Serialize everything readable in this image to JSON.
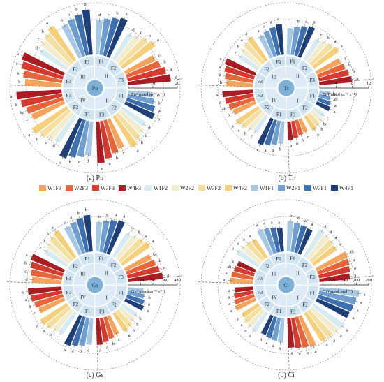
{
  "legend": [
    {
      "label": "W1F3",
      "color": "#f6a45c"
    },
    {
      "label": "W2F3",
      "color": "#e8643a"
    },
    {
      "label": "W3F3",
      "color": "#d63a2e"
    },
    {
      "label": "W4F3",
      "color": "#a71d22"
    },
    {
      "label": "W1F2",
      "color": "#d6ebf2"
    },
    {
      "label": "W2F2",
      "color": "#f3edcf"
    },
    {
      "label": "W3F2",
      "color": "#f5dfa0"
    },
    {
      "label": "W4F2",
      "color": "#f6cf7a"
    },
    {
      "label": "W1F1",
      "color": "#a6c8e4"
    },
    {
      "label": "W2F1",
      "color": "#6f9fd0"
    },
    {
      "label": "W3F1",
      "color": "#3e6fae"
    },
    {
      "label": "W4F1",
      "color": "#1f3f78"
    }
  ],
  "rings": {
    "periods": [
      "I",
      "II",
      "III",
      "IV"
    ],
    "fert": [
      "F1",
      "F2",
      "F3"
    ]
  },
  "chart_data": [
    {
      "type": "bar",
      "caption": "(a) Pn",
      "center": "Pn",
      "axis_label": "Pn/(μmol m⁻² s⁻¹)",
      "ticks": [
        "0",
        "10",
        "20"
      ],
      "ylim": [
        0,
        20
      ],
      "categories": [
        "I-F1",
        "I-F2",
        "I-F3",
        "IV-F1",
        "IV-F2",
        "IV-F3",
        "III-F3",
        "III-F2",
        "III-F1",
        "II-F1",
        "II-F2",
        "II-F3"
      ],
      "series": [
        {
          "name": "W1",
          "values": [
            10.0,
            11.5,
            13.0,
            14.0,
            13.0,
            14.5,
            15.0,
            13.0,
            15.0,
            14.0,
            12.5,
            13.5
          ]
        },
        {
          "name": "W2",
          "values": [
            11.0,
            12.5,
            14.0,
            15.0,
            14.0,
            15.5,
            16.0,
            14.5,
            16.0,
            15.0,
            13.5,
            14.5
          ]
        },
        {
          "name": "W3",
          "values": [
            12.0,
            13.5,
            15.5,
            16.0,
            15.5,
            17.0,
            17.5,
            15.5,
            17.0,
            16.0,
            15.0,
            16.0
          ]
        },
        {
          "name": "W4",
          "values": [
            13.0,
            15.0,
            17.0,
            17.5,
            17.0,
            18.5,
            18.5,
            17.0,
            18.5,
            17.0,
            16.5,
            17.5
          ]
        }
      ],
      "sig": [
        [
          "c",
          "b",
          "a",
          "b"
        ],
        [
          "d",
          "c",
          "b",
          "a"
        ],
        [
          "c",
          "b",
          "a",
          "a"
        ],
        [
          "d",
          "c",
          "b",
          "a"
        ],
        [
          "d",
          "c",
          "b",
          "a"
        ],
        [
          "c",
          "bc",
          "b",
          "a"
        ],
        [
          "b",
          "a",
          "a",
          "a"
        ],
        [
          "d",
          "c",
          "b",
          "a"
        ],
        [
          "a",
          "a",
          "b",
          "b"
        ],
        [
          "d",
          "c",
          "b",
          "a"
        ],
        [
          "d",
          "c",
          "b",
          "a"
        ],
        [
          "c",
          "b",
          "a",
          "d"
        ]
      ]
    },
    {
      "type": "bar",
      "caption": "(b) Tr",
      "center": "Tr",
      "axis_label": "Tr/(mmol m⁻² s⁻¹)",
      "ticks": [
        "0",
        "4",
        "8",
        "12"
      ],
      "ylim": [
        0,
        12
      ],
      "categories": [
        "I-F1",
        "I-F2",
        "I-F3",
        "IV-F1",
        "IV-F2",
        "IV-F3",
        "III-F3",
        "III-F2",
        "III-F1",
        "II-F1",
        "II-F2",
        "II-F3"
      ],
      "series": [
        {
          "name": "W1",
          "values": [
            2.5,
            3.0,
            3.5,
            5.5,
            5.0,
            6.0,
            6.5,
            5.5,
            6.0,
            6.5,
            6.0,
            6.5
          ]
        },
        {
          "name": "W2",
          "values": [
            2.8,
            3.4,
            3.8,
            6.0,
            5.5,
            6.5,
            7.0,
            6.0,
            6.5,
            7.0,
            6.5,
            7.0
          ]
        },
        {
          "name": "W3",
          "values": [
            3.2,
            3.8,
            4.2,
            6.5,
            6.0,
            7.0,
            7.5,
            6.5,
            7.0,
            7.5,
            7.0,
            7.5
          ]
        },
        {
          "name": "W4",
          "values": [
            3.6,
            4.2,
            4.6,
            7.0,
            6.5,
            7.5,
            8.0,
            7.0,
            7.5,
            8.0,
            7.5,
            8.0
          ]
        }
      ],
      "sig": [
        [
          "bc",
          "ab",
          "a",
          "a"
        ],
        [
          "c",
          "bc",
          "b",
          "a"
        ],
        [
          "c",
          "b",
          "a",
          "a"
        ],
        [
          "b",
          "b",
          "a",
          "a"
        ],
        [
          "c",
          "b",
          "a",
          "a"
        ],
        [
          "b",
          "ab",
          "a",
          "a"
        ],
        [
          "b",
          "a",
          "a",
          "a"
        ],
        [
          "c",
          "b",
          "a",
          "a"
        ],
        [
          "a",
          "a",
          "a",
          "a"
        ],
        [
          "c",
          "b",
          "a",
          "a"
        ],
        [
          "c",
          "b",
          "a",
          "a"
        ],
        [
          "b",
          "b",
          "a",
          "a"
        ]
      ]
    },
    {
      "type": "bar",
      "caption": "(c) Gs",
      "center": "Gs",
      "axis_label": "Gs/(μmol m⁻² s⁻¹)",
      "ticks": [
        "120",
        "240",
        "360",
        "480"
      ],
      "ylim": [
        0,
        480
      ],
      "categories": [
        "I-F1",
        "I-F2",
        "I-F3",
        "IV-F1",
        "IV-F2",
        "IV-F3",
        "III-F3",
        "III-F2",
        "III-F1",
        "II-F1",
        "II-F2",
        "II-F3"
      ],
      "series": [
        {
          "name": "W1",
          "values": [
            150,
            170,
            200,
            260,
            250,
            270,
            290,
            260,
            300,
            290,
            270,
            280
          ]
        },
        {
          "name": "W2",
          "values": [
            165,
            185,
            220,
            280,
            270,
            290,
            310,
            280,
            320,
            310,
            290,
            300
          ]
        },
        {
          "name": "W3",
          "values": [
            180,
            200,
            240,
            300,
            290,
            310,
            330,
            300,
            340,
            330,
            310,
            320
          ]
        },
        {
          "name": "W4",
          "values": [
            195,
            215,
            260,
            320,
            310,
            330,
            350,
            320,
            360,
            350,
            330,
            340
          ]
        }
      ],
      "sig": [
        [
          "c",
          "b",
          "a",
          "a"
        ],
        [
          "b",
          "b",
          "a",
          "a"
        ],
        [
          "c",
          "b",
          "a",
          "a"
        ],
        [
          "c",
          "b",
          "a",
          "a"
        ],
        [
          "c",
          "b",
          "a",
          "a"
        ],
        [
          "c",
          "b",
          "a",
          "a"
        ],
        [
          "d",
          "c",
          "b",
          "a"
        ],
        [
          "c",
          "b",
          "a",
          "a"
        ],
        [
          "a",
          "a",
          "b",
          "b"
        ],
        [
          "c",
          "b",
          "a",
          "a"
        ],
        [
          "c",
          "b",
          "a",
          "a"
        ],
        [
          "bc",
          "b",
          "a",
          "a"
        ]
      ]
    },
    {
      "type": "bar",
      "caption": "(d) Ci",
      "center": "Ci",
      "axis_label": "Ci/(μmol mol⁻¹)",
      "ticks": [
        "220",
        "240",
        "260",
        "280"
      ],
      "ylim": [
        200,
        280
      ],
      "categories": [
        "I-F1",
        "I-F2",
        "I-F3",
        "IV-F1",
        "IV-F2",
        "IV-F3",
        "III-F3",
        "III-F2",
        "III-F1",
        "II-F1",
        "II-F2",
        "II-F3"
      ],
      "series": [
        {
          "name": "W1",
          "values": [
            265,
            260,
            255,
            240,
            238,
            236,
            238,
            242,
            245,
            250,
            252,
            256
          ]
        },
        {
          "name": "W2",
          "values": [
            262,
            258,
            252,
            238,
            236,
            234,
            236,
            240,
            243,
            248,
            250,
            254
          ]
        },
        {
          "name": "W3",
          "values": [
            260,
            256,
            250,
            236,
            234,
            232,
            234,
            238,
            241,
            246,
            248,
            252
          ]
        },
        {
          "name": "W4",
          "values": [
            258,
            254,
            248,
            234,
            232,
            230,
            232,
            236,
            239,
            244,
            246,
            250
          ]
        }
      ],
      "sig": [
        [
          "a",
          "a",
          "a",
          "a"
        ],
        [
          "a",
          "a",
          "a",
          "a"
        ],
        [
          "a",
          "a",
          "a",
          "a"
        ],
        [
          "a",
          "a",
          "a",
          "a"
        ],
        [
          "a",
          "a",
          "a",
          "a"
        ],
        [
          "a",
          "a",
          "a",
          "a"
        ],
        [
          "a",
          "a",
          "ab",
          "a"
        ],
        [
          "a",
          "a",
          "a",
          "a"
        ],
        [
          "a",
          "a",
          "a",
          "a"
        ],
        [
          "a",
          "a",
          "a",
          "a"
        ],
        [
          "a",
          "a",
          "a",
          "a"
        ],
        [
          "ab",
          "a",
          "a",
          "a"
        ]
      ]
    }
  ]
}
